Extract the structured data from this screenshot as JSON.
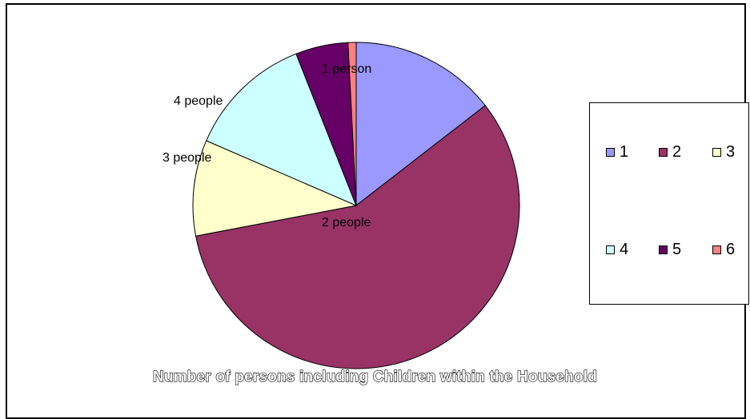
{
  "chart_data": {
    "type": "pie",
    "title": "Number of persons including Children within the Household",
    "categories": [
      "1",
      "2",
      "3",
      "4",
      "5",
      "6"
    ],
    "values": [
      14.5,
      57.5,
      9.5,
      12.5,
      5.2,
      0.8
    ],
    "colors": [
      "#9999FF",
      "#993366",
      "#FFFFCC",
      "#CCFFFF",
      "#660066",
      "#FF8080"
    ],
    "slice_labels": [
      "1 person",
      "2 people",
      "3 people",
      "4 people",
      "",
      ""
    ],
    "legend": {
      "position": "right",
      "items": [
        {
          "label": "1",
          "color": "#9999FF"
        },
        {
          "label": "2",
          "color": "#993366"
        },
        {
          "label": "3",
          "color": "#FFFFCC"
        },
        {
          "label": "4",
          "color": "#CCFFFF"
        },
        {
          "label": "5",
          "color": "#660066"
        },
        {
          "label": "6",
          "color": "#FF8080"
        }
      ]
    }
  }
}
